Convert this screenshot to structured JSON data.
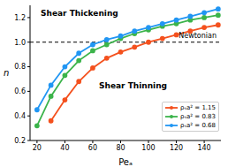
{
  "chart_data": {
    "type": "line",
    "x_label": "Peₐ",
    "y_label": "n",
    "xlim": [
      15,
      152
    ],
    "xticks": [
      20,
      40,
      60,
      80,
      100,
      120,
      140
    ],
    "ylim": [
      0.2,
      1.3
    ],
    "yticks": [
      0.2,
      0.4,
      0.6,
      0.8,
      1.0,
      1.2
    ],
    "grid": false,
    "legend": "lower right",
    "annotations": [
      "Shear Thickening",
      "Shear Thinning"
    ],
    "reference_line": {
      "value": 1.0,
      "label": "Newtonian",
      "line_style": "dashed"
    },
    "series": [
      {
        "name": "ρₛa² = 1.15",
        "color": "#f4511e",
        "marker": "circle",
        "x": [
          30,
          40,
          50,
          60,
          70,
          80,
          90,
          100,
          110,
          120,
          130,
          140,
          150
        ],
        "values": [
          0.36,
          0.53,
          0.68,
          0.79,
          0.87,
          0.92,
          0.96,
          1.0,
          1.03,
          1.06,
          1.09,
          1.12,
          1.14
        ]
      },
      {
        "name": "ρₛa² = 0.83",
        "color": "#3cb44b",
        "marker": "circle",
        "x": [
          20,
          30,
          40,
          50,
          60,
          70,
          80,
          90,
          100,
          110,
          120,
          130,
          140,
          150
        ],
        "values": [
          0.32,
          0.56,
          0.73,
          0.85,
          0.93,
          0.98,
          1.03,
          1.07,
          1.1,
          1.13,
          1.15,
          1.18,
          1.2,
          1.22
        ]
      },
      {
        "name": "ρₛa² = 0.68",
        "color": "#2196f3",
        "marker": "circle",
        "x": [
          20,
          30,
          40,
          50,
          60,
          70,
          80,
          90,
          100,
          110,
          120,
          130,
          140,
          150
        ],
        "values": [
          0.45,
          0.65,
          0.8,
          0.91,
          0.98,
          1.02,
          1.05,
          1.09,
          1.12,
          1.15,
          1.18,
          1.21,
          1.24,
          1.27
        ]
      }
    ]
  }
}
